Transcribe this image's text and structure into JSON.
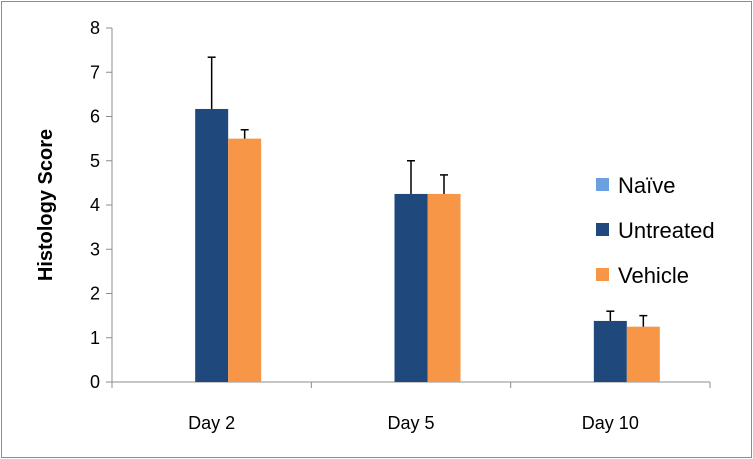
{
  "chart_data": {
    "type": "bar",
    "title": "",
    "xlabel": "",
    "ylabel": "Histology Score",
    "ylim": [
      0,
      8
    ],
    "yticks": [
      "0",
      "1",
      "2",
      "3",
      "4",
      "5",
      "6",
      "7",
      "8"
    ],
    "categories": [
      "Day 2",
      "Day 5",
      "Day 10"
    ],
    "grid": false,
    "legend_position": "right",
    "series": [
      {
        "name": "Naïve",
        "color": "#6aa0e0",
        "values": [
          0,
          0,
          0
        ],
        "errors": [
          0,
          0,
          0
        ]
      },
      {
        "name": "Untreated",
        "color": "#1f497d",
        "values": [
          6.17,
          4.25,
          1.38
        ],
        "errors": [
          1.17,
          0.75,
          0.22
        ]
      },
      {
        "name": "Vehicle",
        "color": "#f79646",
        "values": [
          5.5,
          4.25,
          1.25
        ],
        "errors": [
          0.2,
          0.43,
          0.25
        ]
      }
    ]
  }
}
